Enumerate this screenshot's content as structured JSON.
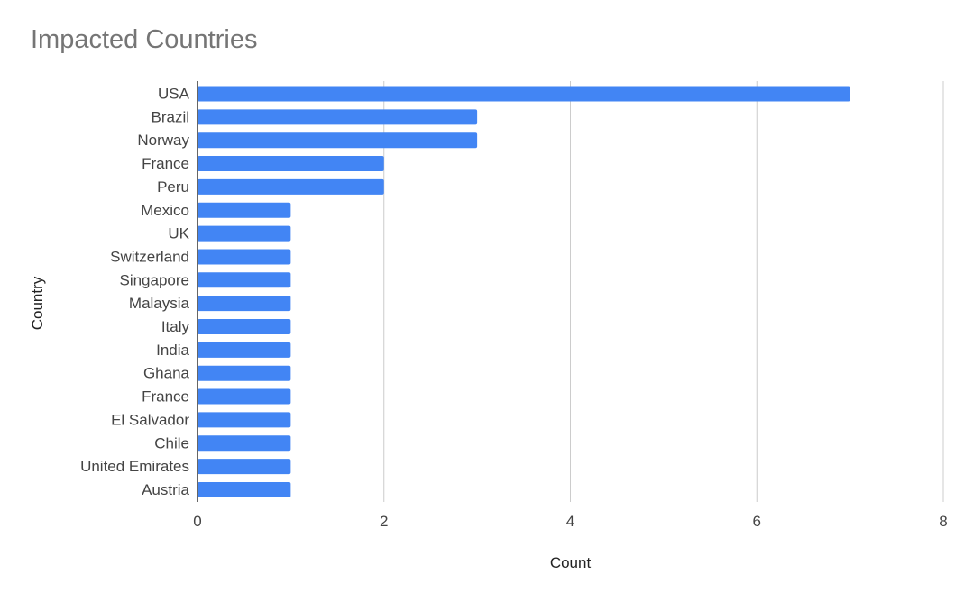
{
  "chart_data": {
    "type": "bar",
    "orientation": "horizontal",
    "title": "Impacted Countries",
    "xlabel": "Count",
    "ylabel": "Country",
    "categories": [
      "USA",
      "Brazil",
      "Norway",
      "France",
      "Peru",
      "Mexico",
      "UK",
      "Switzerland",
      "Singapore",
      "Malaysia",
      "Italy",
      "India",
      "Ghana",
      "France",
      "El Salvador",
      "Chile",
      "United Emirates",
      "Austria"
    ],
    "values": [
      7,
      3,
      3,
      2,
      2,
      1,
      1,
      1,
      1,
      1,
      1,
      1,
      1,
      1,
      1,
      1,
      1,
      1
    ],
    "xlim": [
      0,
      8
    ],
    "xticks": [
      0,
      2,
      4,
      6,
      8
    ],
    "grid": true,
    "legend": "none",
    "bar_color": "#4285f4",
    "grid_color": "#cccccc",
    "axis_color": "#333333"
  }
}
